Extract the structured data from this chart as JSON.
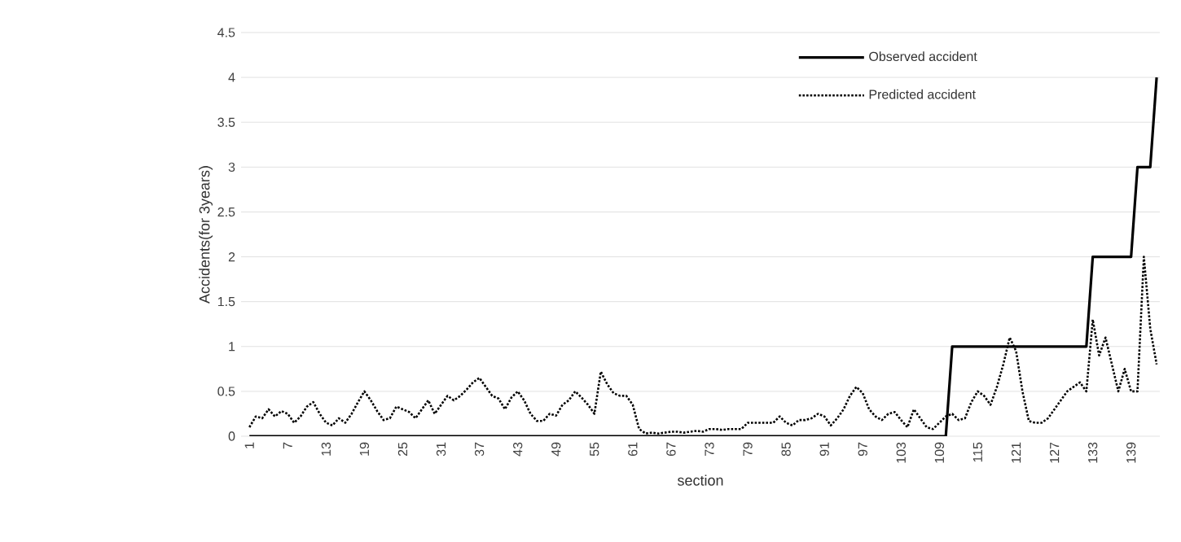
{
  "chart_data": {
    "type": "line",
    "xlabel": "section",
    "ylabel": "Accidents(for 3years)",
    "categories": [
      "1",
      null,
      null,
      null,
      null,
      null,
      "7",
      null,
      null,
      null,
      null,
      null,
      "13",
      null,
      null,
      null,
      null,
      null,
      "19",
      null,
      null,
      null,
      null,
      null,
      "25",
      null,
      null,
      null,
      null,
      null,
      "31",
      null,
      null,
      null,
      null,
      null,
      "37",
      null,
      null,
      null,
      null,
      null,
      "43",
      null,
      null,
      null,
      null,
      null,
      "49",
      null,
      null,
      null,
      null,
      null,
      "55",
      null,
      null,
      null,
      null,
      null,
      "61",
      null,
      null,
      null,
      null,
      null,
      "67",
      null,
      null,
      null,
      null,
      null,
      "73",
      null,
      null,
      null,
      null,
      null,
      "79",
      null,
      null,
      null,
      null,
      null,
      "85",
      null,
      null,
      null,
      null,
      null,
      "91",
      null,
      null,
      null,
      null,
      null,
      "97",
      null,
      null,
      null,
      null,
      null,
      "103",
      null,
      null,
      null,
      null,
      null,
      "109",
      null,
      null,
      null,
      null,
      null,
      "115",
      null,
      null,
      null,
      null,
      null,
      "121",
      null,
      null,
      null,
      null,
      null,
      "127",
      null,
      null,
      null,
      null,
      null,
      "133",
      null,
      null,
      null,
      null,
      null,
      "139",
      null,
      null,
      null,
      null
    ],
    "series": [
      {
        "name": "Observed accident",
        "color": "#000000",
        "line_style": "solid",
        "values": [
          0,
          0,
          0,
          0,
          0,
          0,
          0,
          0,
          0,
          0,
          0,
          0,
          0,
          0,
          0,
          0,
          0,
          0,
          0,
          0,
          0,
          0,
          0,
          0,
          0,
          0,
          0,
          0,
          0,
          0,
          0,
          0,
          0,
          0,
          0,
          0,
          0,
          0,
          0,
          0,
          0,
          0,
          0,
          0,
          0,
          0,
          0,
          0,
          0,
          0,
          0,
          0,
          0,
          0,
          0,
          0,
          0,
          0,
          0,
          0,
          0,
          0,
          0,
          0,
          0,
          0,
          0,
          0,
          0,
          0,
          0,
          0,
          0,
          0,
          0,
          0,
          0,
          0,
          0,
          0,
          0,
          0,
          0,
          0,
          0,
          0,
          0,
          0,
          0,
          0,
          0,
          0,
          0,
          0,
          0,
          0,
          0,
          0,
          0,
          0,
          0,
          0,
          0,
          0,
          0,
          0,
          0,
          0,
          0,
          0,
          1,
          1,
          1,
          1,
          1,
          1,
          1,
          1,
          1,
          1,
          1,
          1,
          1,
          1,
          1,
          1,
          1,
          1,
          1,
          1,
          1,
          1,
          2,
          2,
          2,
          2,
          2,
          2,
          2,
          3,
          3,
          3,
          4
        ]
      },
      {
        "name": "Predicted accident",
        "color": "#000000",
        "line_style": "dotted",
        "values": [
          0.1,
          0.22,
          0.2,
          0.3,
          0.22,
          0.28,
          0.25,
          0.15,
          0.22,
          0.33,
          0.38,
          0.25,
          0.15,
          0.12,
          0.2,
          0.15,
          0.25,
          0.38,
          0.5,
          0.4,
          0.28,
          0.18,
          0.2,
          0.33,
          0.3,
          0.27,
          0.2,
          0.3,
          0.4,
          0.25,
          0.35,
          0.45,
          0.4,
          0.45,
          0.52,
          0.6,
          0.65,
          0.55,
          0.45,
          0.42,
          0.3,
          0.43,
          0.5,
          0.4,
          0.25,
          0.17,
          0.17,
          0.25,
          0.23,
          0.35,
          0.4,
          0.5,
          0.43,
          0.35,
          0.25,
          0.72,
          0.58,
          0.48,
          0.45,
          0.45,
          0.35,
          0.08,
          0.03,
          0.04,
          0.03,
          0.04,
          0.05,
          0.05,
          0.04,
          0.05,
          0.06,
          0.05,
          0.08,
          0.08,
          0.07,
          0.08,
          0.08,
          0.08,
          0.15,
          0.15,
          0.15,
          0.15,
          0.15,
          0.22,
          0.15,
          0.12,
          0.18,
          0.18,
          0.2,
          0.25,
          0.22,
          0.12,
          0.2,
          0.3,
          0.45,
          0.55,
          0.48,
          0.3,
          0.22,
          0.18,
          0.25,
          0.27,
          0.18,
          0.1,
          0.3,
          0.2,
          0.1,
          0.08,
          0.15,
          0.22,
          0.25,
          0.18,
          0.2,
          0.38,
          0.5,
          0.45,
          0.35,
          0.55,
          0.8,
          1.1,
          0.95,
          0.5,
          0.17,
          0.15,
          0.15,
          0.2,
          0.3,
          0.4,
          0.5,
          0.55,
          0.6,
          0.5,
          1.3,
          0.9,
          1.1,
          0.8,
          0.5,
          0.75,
          0.5,
          0.5,
          2.0,
          1.2,
          0.8
        ]
      }
    ],
    "ylim": [
      0,
      4.5
    ],
    "yticks": [
      0,
      0.5,
      1,
      1.5,
      2,
      2.5,
      3,
      3.5,
      4,
      4.5
    ],
    "grid": "y",
    "legend": "top right"
  }
}
